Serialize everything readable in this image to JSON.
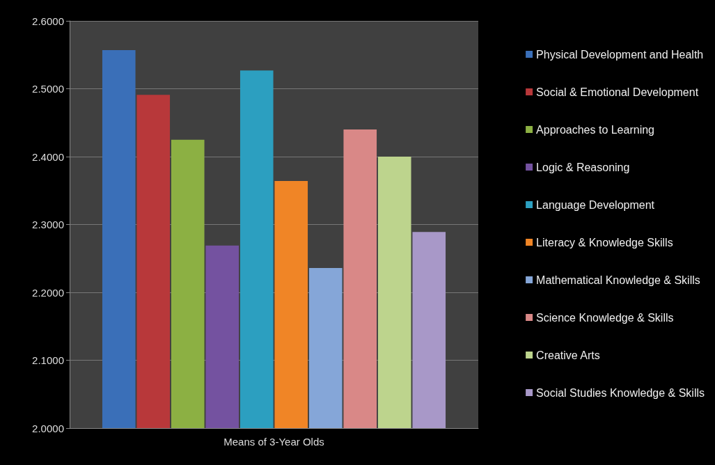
{
  "chart_data": {
    "type": "bar",
    "categories": [
      "Means of 3-Year Olds"
    ],
    "series": [
      {
        "name": "Physical Development and Health",
        "color": "#3a6fb8",
        "values": [
          2.557
        ]
      },
      {
        "name": "Social & Emotional Development",
        "color": "#b8383a",
        "values": [
          2.491
        ]
      },
      {
        "name": "Approaches to Learning",
        "color": "#8cb043",
        "values": [
          2.425
        ]
      },
      {
        "name": "Logic & Reasoning",
        "color": "#7452a0",
        "values": [
          2.269
        ]
      },
      {
        "name": "Language Development",
        "color": "#2c9fc0",
        "values": [
          2.527
        ]
      },
      {
        "name": "Literacy & Knowledge Skills",
        "color": "#f08526",
        "values": [
          2.364
        ]
      },
      {
        "name": "Mathematical Knowledge & Skills",
        "color": "#85a6d8",
        "values": [
          2.236
        ]
      },
      {
        "name": "Science Knowledge & Skills",
        "color": "#d98887",
        "values": [
          2.44
        ]
      },
      {
        "name": "Creative Arts",
        "color": "#bdd48d",
        "values": [
          2.4
        ]
      },
      {
        "name": "Social Studies Knowledge & Skills",
        "color": "#a898c8",
        "values": [
          2.289
        ]
      }
    ],
    "ylim": [
      2,
      2.6
    ],
    "yticks": [
      {
        "value": 2,
        "label": "2.0000"
      },
      {
        "value": 2.1,
        "label": "2.1000"
      },
      {
        "value": 2.2,
        "label": "2.2000"
      },
      {
        "value": 2.3,
        "label": "2.3000"
      },
      {
        "value": 2.4,
        "label": "2.4000"
      },
      {
        "value": 2.5,
        "label": "2.5000"
      },
      {
        "value": 2.6,
        "label": "2.6000"
      }
    ],
    "grid": "y",
    "legend": "right"
  }
}
